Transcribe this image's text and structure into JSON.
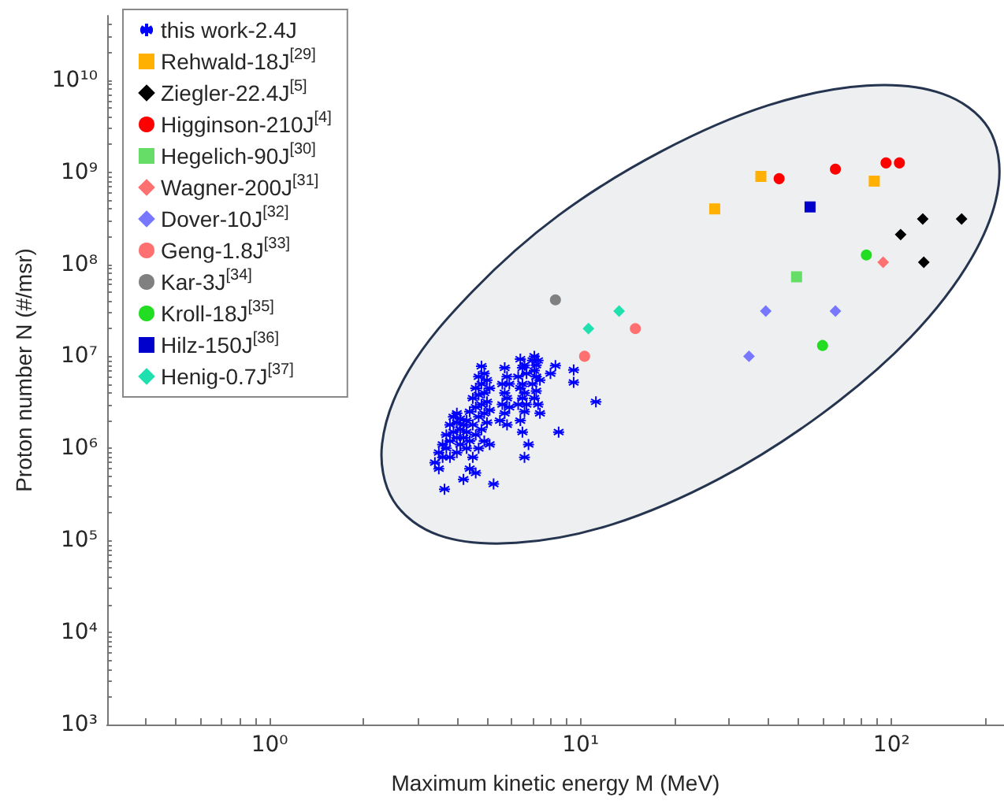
{
  "chart_data": {
    "type": "scatter",
    "xlabel": "Maximum kinetic energy M (MeV)",
    "ylabel": "Proton number N (#/msr)",
    "log": "xy",
    "grid": false,
    "legend": "top left",
    "xlim": [
      0.3,
      230
    ],
    "ylim": [
      1000,
      50000000000
    ],
    "xticks": [
      {
        "value": 0.4,
        "label": null
      },
      {
        "value": 0.5,
        "label": null
      },
      {
        "value": 0.6,
        "label": null
      },
      {
        "value": 0.7,
        "label": null
      },
      {
        "value": 0.8,
        "label": null
      },
      {
        "value": 0.9,
        "label": null
      },
      {
        "value": 1,
        "label": "10⁰"
      },
      {
        "value": 2,
        "label": null
      },
      {
        "value": 3,
        "label": null
      },
      {
        "value": 4,
        "label": null
      },
      {
        "value": 5,
        "label": null
      },
      {
        "value": 6,
        "label": null
      },
      {
        "value": 7,
        "label": null
      },
      {
        "value": 8,
        "label": null
      },
      {
        "value": 9,
        "label": null
      },
      {
        "value": 10,
        "label": "10¹"
      },
      {
        "value": 20,
        "label": null
      },
      {
        "value": 30,
        "label": null
      },
      {
        "value": 40,
        "label": null
      },
      {
        "value": 50,
        "label": null
      },
      {
        "value": 60,
        "label": null
      },
      {
        "value": 70,
        "label": null
      },
      {
        "value": 80,
        "label": null
      },
      {
        "value": 90,
        "label": null
      },
      {
        "value": 100,
        "label": "10²"
      },
      {
        "value": 200,
        "label": null
      }
    ],
    "yticks": [
      {
        "value": 1000,
        "label": "10³"
      },
      {
        "value": 10000,
        "label": "10⁴"
      },
      {
        "value": 100000,
        "label": "10⁵"
      },
      {
        "value": 1000000,
        "label": "10⁶"
      },
      {
        "value": 10000000,
        "label": "10⁷"
      },
      {
        "value": 100000000,
        "label": "10⁸"
      },
      {
        "value": 1000000000,
        "label": "10⁹"
      },
      {
        "value": 10000000000,
        "label": "10¹⁰"
      },
      {
        "value": 2000,
        "label": null
      },
      {
        "value": 3000,
        "label": null
      },
      {
        "value": 4000,
        "label": null
      },
      {
        "value": 5000,
        "label": null
      },
      {
        "value": 6000,
        "label": null
      },
      {
        "value": 7000,
        "label": null
      },
      {
        "value": 8000,
        "label": null
      },
      {
        "value": 9000,
        "label": null
      },
      {
        "value": 20000,
        "label": null
      },
      {
        "value": 30000,
        "label": null
      },
      {
        "value": 40000,
        "label": null
      },
      {
        "value": 50000,
        "label": null
      },
      {
        "value": 60000,
        "label": null
      },
      {
        "value": 70000,
        "label": null
      },
      {
        "value": 80000,
        "label": null
      },
      {
        "value": 90000,
        "label": null
      },
      {
        "value": 200000,
        "label": null
      },
      {
        "value": 300000,
        "label": null
      },
      {
        "value": 400000,
        "label": null
      },
      {
        "value": 500000,
        "label": null
      },
      {
        "value": 600000,
        "label": null
      },
      {
        "value": 700000,
        "label": null
      },
      {
        "value": 800000,
        "label": null
      },
      {
        "value": 900000,
        "label": null
      },
      {
        "value": 2000000,
        "label": null
      },
      {
        "value": 3000000,
        "label": null
      },
      {
        "value": 4000000,
        "label": null
      },
      {
        "value": 5000000,
        "label": null
      },
      {
        "value": 6000000,
        "label": null
      },
      {
        "value": 7000000,
        "label": null
      },
      {
        "value": 8000000,
        "label": null
      },
      {
        "value": 9000000,
        "label": null
      },
      {
        "value": 20000000,
        "label": null
      },
      {
        "value": 30000000,
        "label": null
      },
      {
        "value": 40000000,
        "label": null
      },
      {
        "value": 50000000,
        "label": null
      },
      {
        "value": 60000000,
        "label": null
      },
      {
        "value": 70000000,
        "label": null
      },
      {
        "value": 80000000,
        "label": null
      },
      {
        "value": 90000000,
        "label": null
      },
      {
        "value": 200000000,
        "label": null
      },
      {
        "value": 300000000,
        "label": null
      },
      {
        "value": 400000000,
        "label": null
      },
      {
        "value": 500000000,
        "label": null
      },
      {
        "value": 600000000,
        "label": null
      },
      {
        "value": 700000000,
        "label": null
      },
      {
        "value": 800000000,
        "label": null
      },
      {
        "value": 900000000,
        "label": null
      },
      {
        "value": 2000000000,
        "label": null
      },
      {
        "value": 3000000000,
        "label": null
      },
      {
        "value": 4000000000,
        "label": null
      },
      {
        "value": 5000000000,
        "label": null
      },
      {
        "value": 6000000000,
        "label": null
      },
      {
        "value": 7000000000,
        "label": null
      },
      {
        "value": 8000000000,
        "label": null
      },
      {
        "value": 9000000000,
        "label": null
      },
      {
        "value": 20000000000,
        "label": null
      },
      {
        "value": 30000000000,
        "label": null
      },
      {
        "value": 40000000000,
        "label": null
      }
    ],
    "series": [
      {
        "type": "area",
        "color": "#25344f",
        "x": [
          205,
          221,
          181,
          115,
          60,
          28,
          12.7,
          6.2,
          3.5,
          2.5,
          2.3,
          2.8,
          4.5,
          8.5,
          18.3,
          40,
          83,
          146
        ],
        "values": [
          3000000000,
          720000000,
          117000000,
          16000000,
          2400000,
          470000,
          150000,
          94000,
          114000,
          270000,
          1130000,
          7000000,
          51000000,
          340000000,
          1700000000,
          5300000000,
          8700000000,
          7100000000
        ]
      },
      {
        "name": "this work-2.4J",
        "marker": "cross",
        "color": "#0000ff",
        "x": [
          3.4,
          3.5,
          3.5,
          3.6,
          3.6,
          3.7,
          3.7,
          3.8,
          3.8,
          3.8,
          3.9,
          3.9,
          4.0,
          4.0,
          4.0,
          4.0,
          4.1,
          4.1,
          4.1,
          4.2,
          4.2,
          4.3,
          4.3,
          4.3,
          3.65,
          4.2,
          5.25,
          4.4,
          4.4,
          4.4,
          4.5,
          4.5,
          4.5,
          4.6,
          4.6,
          4.6,
          4.7,
          4.7,
          4.7,
          4.7,
          4.8,
          4.8,
          4.8,
          4.8,
          4.9,
          4.9,
          4.9,
          4.9,
          5.0,
          5.0,
          5.0,
          5.1,
          5.1,
          5.1,
          4.6,
          5.5,
          5.6,
          5.6,
          5.7,
          5.7,
          5.7,
          5.8,
          5.8,
          5.8,
          5.9,
          5.9,
          6.3,
          6.3,
          6.4,
          6.4,
          6.4,
          6.5,
          6.5,
          6.5,
          6.5,
          6.6,
          6.6,
          6.6,
          6.6,
          6.7,
          6.7,
          6.8,
          7.0,
          7.0,
          7.1,
          7.1,
          7.1,
          7.2,
          7.2,
          7.2,
          7.3,
          7.3,
          7.4,
          7.4,
          8.3,
          8.0,
          9.5,
          9.5,
          11.2,
          8.5
        ],
        "values": [
          700000,
          900000,
          600000,
          1100000,
          800000,
          1400000,
          1000000,
          1800000,
          1200000,
          800000,
          2200000,
          1500000,
          2400000,
          1900000,
          1300000,
          900000,
          2100000,
          1600000,
          1100000,
          1800000,
          1300000,
          2000000,
          1500000,
          1000000,
          360000,
          460000,
          410000,
          600000,
          1200000,
          2500000,
          3500000,
          1800000,
          800000,
          4500000,
          2800000,
          1400000,
          6000000,
          3800000,
          2200000,
          1000000,
          7800000,
          5000000,
          3000000,
          1600000,
          6500000,
          4000000,
          2400000,
          1200000,
          5500000,
          3200000,
          1900000,
          4500000,
          2600000,
          1100000,
          540000,
          2000000,
          3000000,
          5000000,
          7500000,
          4000000,
          2400000,
          6000000,
          3500000,
          1800000,
          5000000,
          2800000,
          3000000,
          6000000,
          9300000,
          4500000,
          2000000,
          7500000,
          5000000,
          3500000,
          1500000,
          8000000,
          4000000,
          2500000,
          800000,
          6500000,
          3000000,
          1100000,
          9000000,
          5000000,
          10000000,
          7000000,
          3500000,
          8000000,
          6000000,
          4200000,
          9000000,
          3000000,
          5500000,
          2400000,
          7900000,
          6500000,
          7100000,
          5200000,
          3200000,
          1500000
        ]
      },
      {
        "name": "Rehwald-18J$^{[29]}$",
        "marker": "square",
        "color": "#ffb000",
        "x": [
          27,
          38,
          88
        ],
        "values": [
          400000000,
          900000000,
          800000000
        ]
      },
      {
        "name": "Ziegler-22.4J$^{[5]}$",
        "marker": "diamond",
        "color": "#000000",
        "x": [
          126,
          168,
          107,
          127
        ],
        "values": [
          310000000,
          310000000,
          210000000,
          105000000
        ]
      },
      {
        "name": "Higginson-210J$^{[4]}$",
        "marker": "circle",
        "color": "#ff0000",
        "x": [
          43.5,
          66,
          96,
          106
        ],
        "values": [
          850000000,
          1080000000,
          1260000000,
          1260000000
        ]
      },
      {
        "name": "Hegelich-90J$^{[30]}$",
        "marker": "square",
        "color": "#66dd66",
        "x": [
          49.5
        ],
        "values": [
          73000000
        ]
      },
      {
        "name": "Wagner-200J$^{[31]}$",
        "marker": "diamond",
        "color": "#ff7070",
        "x": [
          94
        ],
        "values": [
          105000000
        ]
      },
      {
        "name": "Dover-10J$^{[32]}$",
        "marker": "diamond",
        "color": "#7777ff",
        "x": [
          39.4,
          66,
          34.8
        ],
        "values": [
          31000000,
          31000000,
          10000000
        ]
      },
      {
        "name": "Geng-1.8J$^{[33]}$",
        "marker": "circle",
        "color": "#ff7070",
        "x": [
          15,
          10.3
        ],
        "values": [
          20000000,
          10000000
        ]
      },
      {
        "name": "Kar-3J$^{[34]}$",
        "marker": "circle",
        "color": "#808080",
        "x": [
          8.3
        ],
        "values": [
          41000000
        ]
      },
      {
        "name": "Kroll-18J$^{[35]}$",
        "marker": "circle",
        "color": "#22dd22",
        "x": [
          83,
          60
        ],
        "values": [
          126000000,
          13100000
        ]
      },
      {
        "name": "Hilz-150J$^{[36]}$",
        "marker": "square",
        "color": "#0000cc",
        "x": [
          54.7
        ],
        "values": [
          420000000
        ]
      },
      {
        "name": "Henig-0.7J$^{[37]}$",
        "marker": "diamond",
        "color": "#20e0b0",
        "x": [
          10.6,
          13.3
        ],
        "values": [
          20000000,
          31000000
        ]
      }
    ]
  }
}
